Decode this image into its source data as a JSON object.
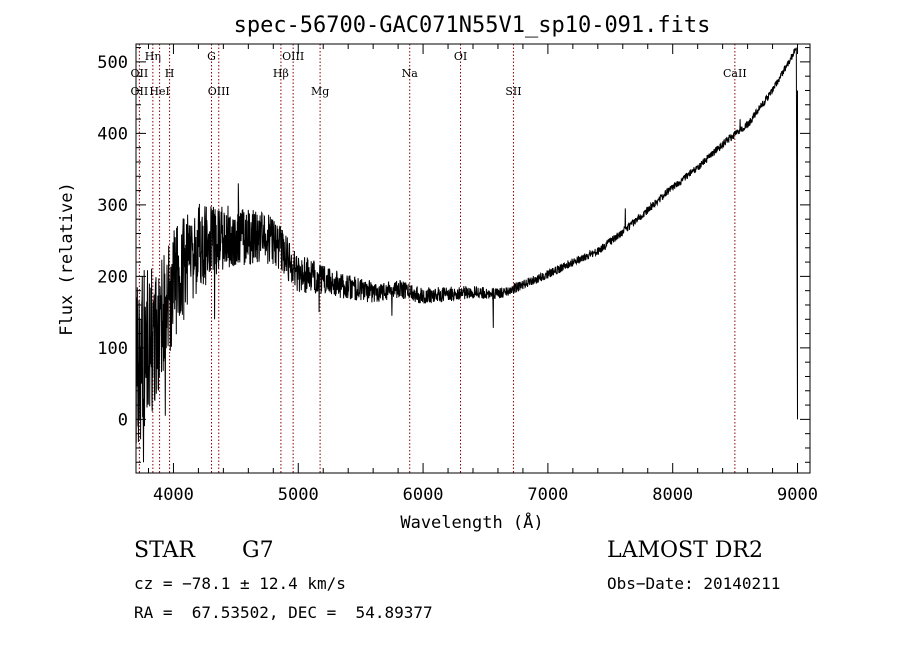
{
  "chart_data": {
    "type": "line",
    "title": "spec-56700-GAC071N55V1_sp10-091.fits",
    "xlabel": "Wavelength (Å)",
    "ylabel": "Flux (relative)",
    "xlim": [
      3700,
      9100
    ],
    "ylim": [
      -75,
      525
    ],
    "xticks": [
      4000,
      5000,
      6000,
      7000,
      8000,
      9000
    ],
    "yticks": [
      0,
      100,
      200,
      300,
      400,
      500
    ],
    "grid": false,
    "line_color": "#000000",
    "marker_color": "#8b0000",
    "line_markers": [
      {
        "label": "OII",
        "x": 3727,
        "row": 1
      },
      {
        "label": "OII",
        "x": 3727,
        "row": 2
      },
      {
        "label": "Hη",
        "x": 3835,
        "row": 0
      },
      {
        "label": "HeI",
        "x": 3889,
        "row": 2
      },
      {
        "label": "H",
        "x": 3969,
        "row": 1
      },
      {
        "label": "G",
        "x": 4305,
        "row": 0
      },
      {
        "label": "OIII",
        "x": 4363,
        "row": 2
      },
      {
        "label": "Hβ",
        "x": 4861,
        "row": 1
      },
      {
        "label": "OIII",
        "x": 4959,
        "row": 0
      },
      {
        "label": "Mg",
        "x": 5175,
        "row": 2
      },
      {
        "label": "Na",
        "x": 5893,
        "row": 1
      },
      {
        "label": "OI",
        "x": 6300,
        "row": 0
      },
      {
        "label": "SII",
        "x": 6724,
        "row": 2
      },
      {
        "label": "CaII",
        "x": 8498,
        "row": 1
      }
    ],
    "continuum": {
      "x": [
        3700,
        3800,
        3900,
        4000,
        4200,
        4400,
        4600,
        4800,
        5000,
        5200,
        5400,
        5600,
        5800,
        6000,
        6200,
        6400,
        6600,
        6800,
        7000,
        7200,
        7400,
        7600,
        7800,
        8000,
        8200,
        8400,
        8600,
        8800,
        9000
      ],
      "y": [
        90,
        100,
        135,
        190,
        240,
        255,
        255,
        250,
        205,
        195,
        185,
        178,
        183,
        173,
        175,
        178,
        175,
        188,
        203,
        220,
        235,
        262,
        293,
        325,
        352,
        385,
        412,
        460,
        522
      ]
    },
    "noise_amplitude": {
      "x": [
        3700,
        3900,
        4100,
        4400,
        4900,
        5200,
        5800,
        6400,
        7000,
        8000,
        8900
      ],
      "y": [
        130,
        90,
        70,
        45,
        32,
        20,
        13,
        9,
        6,
        5,
        5
      ]
    },
    "features": [
      {
        "x": 3760,
        "y": -60
      },
      {
        "x": 3935,
        "y": 5
      },
      {
        "x": 4180,
        "y": 255
      },
      {
        "x": 4330,
        "y": 140
      },
      {
        "x": 4520,
        "y": 330
      },
      {
        "x": 5167,
        "y": 150
      },
      {
        "x": 5750,
        "y": 145
      },
      {
        "x": 6563,
        "y": 128
      },
      {
        "x": 7620,
        "y": 295
      },
      {
        "x": 8540,
        "y": 420
      },
      {
        "x": 8990,
        "y": 520
      },
      {
        "x": 9000,
        "y": 0
      }
    ]
  },
  "footer": {
    "object_class": "STAR",
    "subclass": "G7",
    "survey": "LAMOST DR2",
    "redshift_line": "cz = −78.1 ± 12.4 km/s",
    "obs_date": "Obs−Date: 20140211",
    "coords_line": "RA =  67.53502, DEC =  54.89377"
  }
}
